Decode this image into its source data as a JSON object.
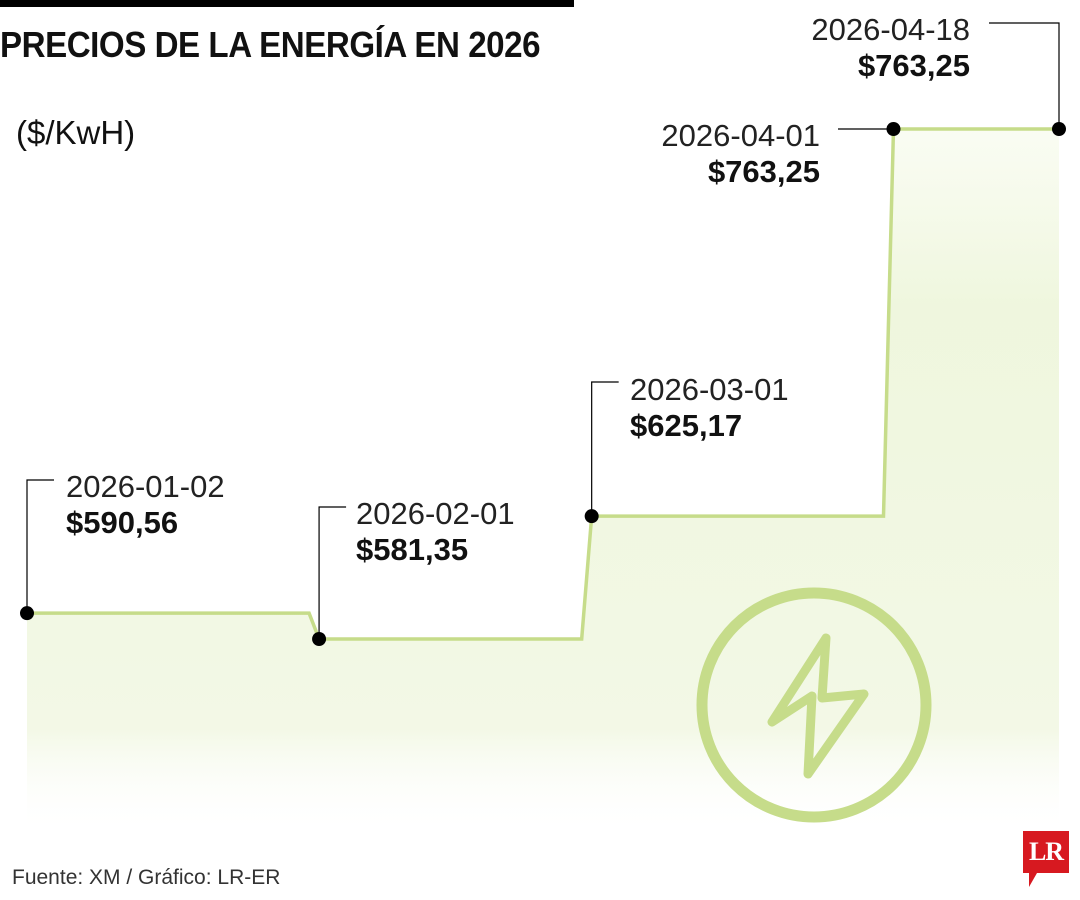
{
  "header": {
    "title": "PRECIOS DE LA ENERGÍA EN 2026",
    "unit": "($/KwH)"
  },
  "footer": {
    "source": "Fuente: XM / Gráfico: LR-ER"
  },
  "logo": {
    "text": "LR",
    "color": "#d71920"
  },
  "icon": {
    "name": "lightning-bolt-icon",
    "color": "#c6dc8a"
  },
  "colors": {
    "line": "#c6dc8a",
    "area": "#f1f7e1",
    "point": "#000000",
    "leader": "#000000"
  },
  "chart_data": {
    "type": "line",
    "step": true,
    "x": [
      "2026-01-02",
      "2026-02-01",
      "2026-03-01",
      "2026-04-01",
      "2026-04-18"
    ],
    "y": [
      590.56,
      581.35,
      625.17,
      763.25,
      763.25
    ],
    "labels": [
      "$590,56",
      "$581,35",
      "$625,17",
      "$763,25",
      "$763,25"
    ],
    "title": "PRECIOS DE LA ENERGÍA EN 2026",
    "ylabel": "($/KwH)",
    "grid": false,
    "legend": "none"
  }
}
